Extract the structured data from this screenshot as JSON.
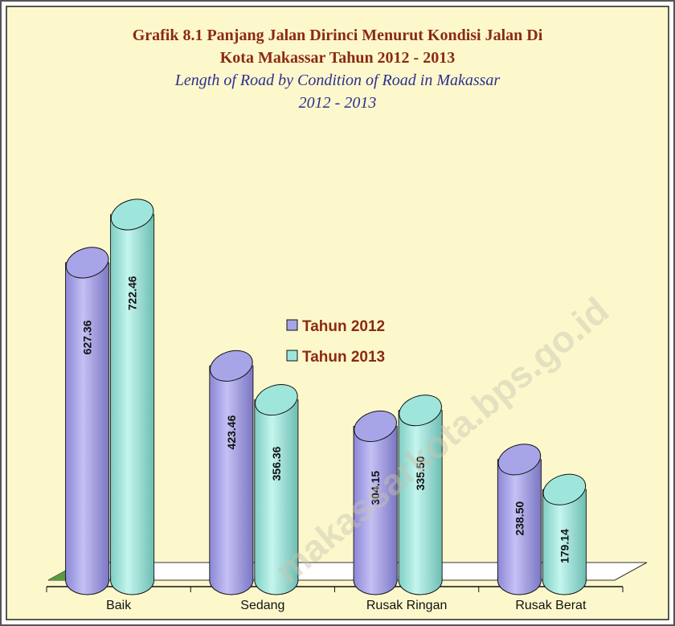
{
  "chart_data": {
    "type": "cylinder-bar",
    "title": "Grafik 8.1 Panjang Jalan  Dirinci Menurut Kondisi Jalan Di",
    "title_line2": "Kota Makassar Tahun 2012 - 2013",
    "subtitle": "Length of Road  by Condition of Road  in Makassar",
    "subtitle_line2": "2012 - 2013",
    "watermark": "makassarkota.bps.go.id",
    "categories": [
      "Baik",
      "Sedang",
      "Rusak Ringan",
      "Rusak Berat"
    ],
    "series": [
      {
        "name": "Tahun 2012",
        "color": "#a8a4e8",
        "values": [
          627.36,
          423.46,
          304.15,
          238.5
        ],
        "value_labels": [
          "627.36",
          "423.46",
          "304.15",
          "238.50"
        ]
      },
      {
        "name": "Tahun 2013",
        "color": "#9ee6dc",
        "values": [
          722.46,
          356.36,
          335.5,
          179.14
        ],
        "value_labels": [
          "722.46",
          "356.36",
          "335.50",
          "179.14"
        ]
      }
    ]
  }
}
